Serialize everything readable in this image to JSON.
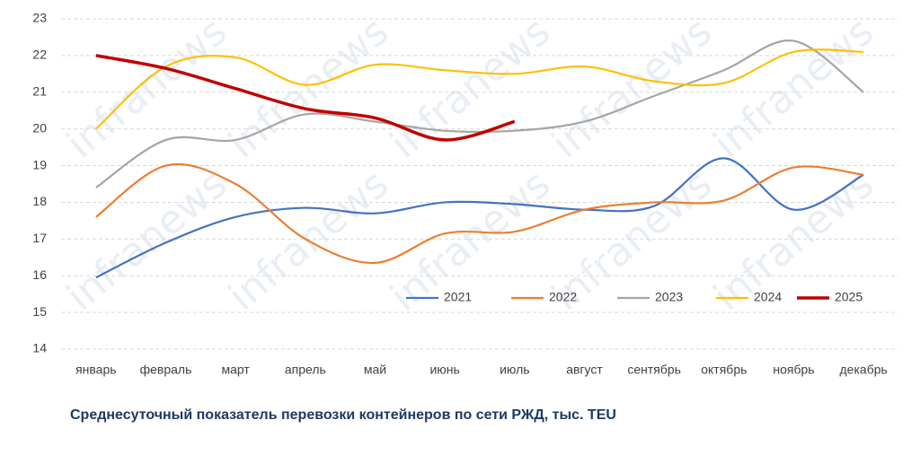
{
  "chart_data": {
    "type": "line",
    "title": "Среднесуточный показатель перевозки контейнеров по сети РЖД, тыс. TEU",
    "watermark": "infranews",
    "categories": [
      "январь",
      "февраль",
      "март",
      "апрель",
      "май",
      "июнь",
      "июль",
      "август",
      "сентябрь",
      "октябрь",
      "ноябрь",
      "декабрь"
    ],
    "series": [
      {
        "name": "2021",
        "color": "#4472c4",
        "values": [
          15.95,
          16.9,
          17.6,
          17.85,
          17.7,
          18.0,
          17.95,
          17.8,
          17.9,
          19.2,
          17.8,
          18.75
        ]
      },
      {
        "name": "2022",
        "color": "#ed7d31",
        "values": [
          17.6,
          19.0,
          18.5,
          17.0,
          16.35,
          17.15,
          17.2,
          17.8,
          18.0,
          18.05,
          18.95,
          18.75
        ]
      },
      {
        "name": "2023",
        "color": "#a5a5a5",
        "values": [
          18.4,
          19.7,
          19.7,
          20.4,
          20.2,
          19.95,
          19.95,
          20.2,
          20.9,
          21.6,
          22.4,
          21.0
        ]
      },
      {
        "name": "2024",
        "color": "#ffc000",
        "values": [
          20.0,
          21.7,
          21.95,
          21.2,
          21.75,
          21.6,
          21.5,
          21.7,
          21.3,
          21.25,
          22.1,
          22.1
        ]
      },
      {
        "name": "2025",
        "color": "#c00000",
        "values": [
          22.0,
          21.65,
          21.1,
          20.55,
          20.3,
          19.7,
          20.2,
          null,
          null,
          null,
          null,
          null
        ]
      }
    ],
    "ylim": [
      14,
      23
    ],
    "yticks": [
      14,
      15,
      16,
      17,
      18,
      19,
      20,
      21,
      22,
      23
    ],
    "grid": true,
    "legend": "bottom-right"
  }
}
